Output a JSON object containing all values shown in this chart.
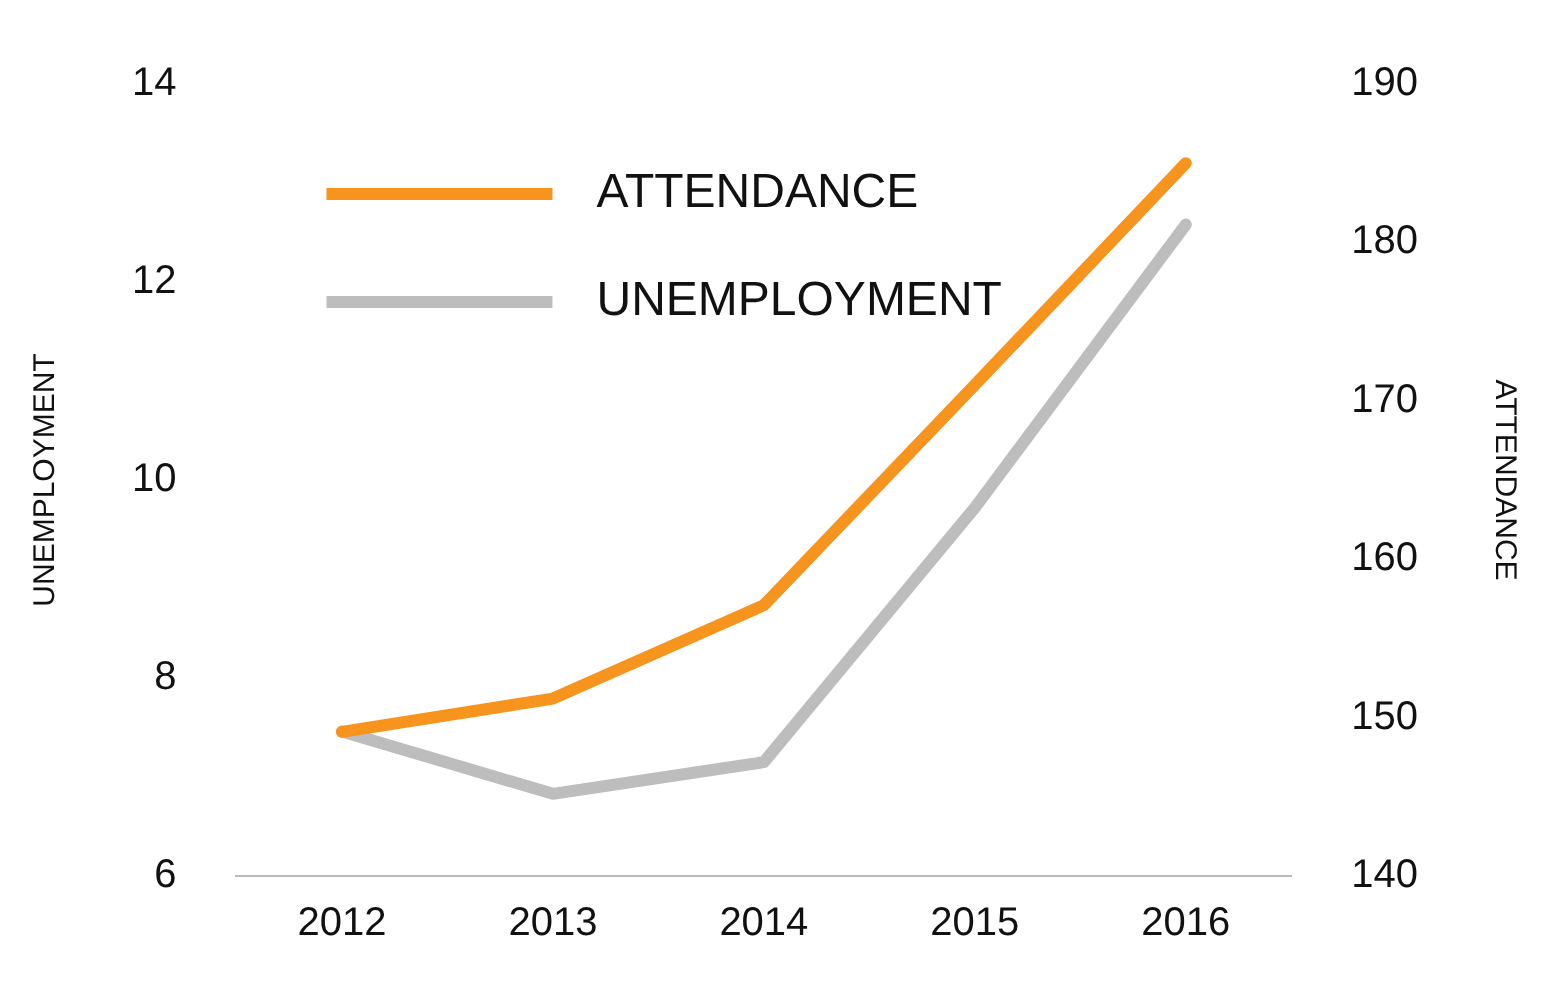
{
  "chart_data": {
    "type": "line",
    "categories": [
      "2012",
      "2013",
      "2014",
      "2015",
      "2016"
    ],
    "ylabel": "UNEMPLOYMENT",
    "y2label": "ATTENDANCE",
    "ylim": [
      6,
      14
    ],
    "yticks": [
      6,
      8,
      10,
      12,
      14
    ],
    "y2lim": [
      140,
      190
    ],
    "y2ticks": [
      140,
      150,
      160,
      170,
      180,
      190
    ],
    "series": [
      {
        "name": "ATTENDANCE",
        "color": "#f7941d",
        "axis": "y2",
        "values": [
          149.1,
          151.2,
          157.1,
          171,
          185
        ]
      },
      {
        "name": "UNEMPLOYMENT",
        "color": "#bdbdbd",
        "values": [
          7.46,
          6.83,
          7.15,
          9.72,
          12.58
        ]
      }
    ],
    "grid": false,
    "legend": "top left",
    "marker": "none",
    "line_style": "solid"
  }
}
